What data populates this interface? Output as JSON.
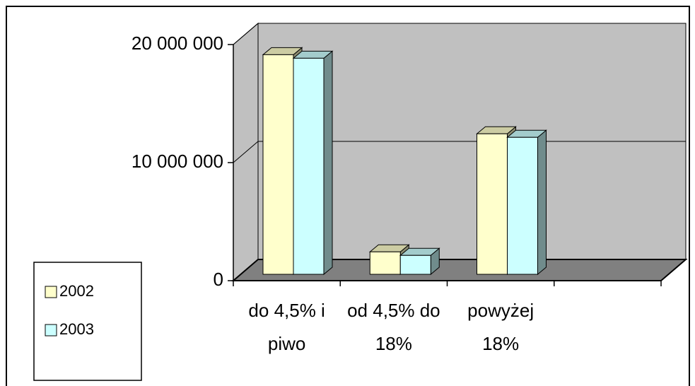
{
  "chart_data": {
    "type": "bar3d",
    "categories": [
      "do 4,5% i piwo",
      "od 4,5% do 18%",
      "powyżej 18%",
      null
    ],
    "series": [
      {
        "name": "2002",
        "color": "#ffffcc",
        "values": [
          18600000,
          1900000,
          11900000,
          null
        ]
      },
      {
        "name": "2003",
        "color": "#ccffff",
        "values": [
          18300000,
          1600000,
          11600000,
          null
        ]
      }
    ],
    "ylim": [
      0,
      20000000
    ],
    "yticks": [
      0,
      {
        "value": 10000000,
        "label": "10 000 000"
      },
      {
        "value": 20000000,
        "label": "20 000 000"
      }
    ],
    "grid": true,
    "legend": "bottom-left"
  }
}
